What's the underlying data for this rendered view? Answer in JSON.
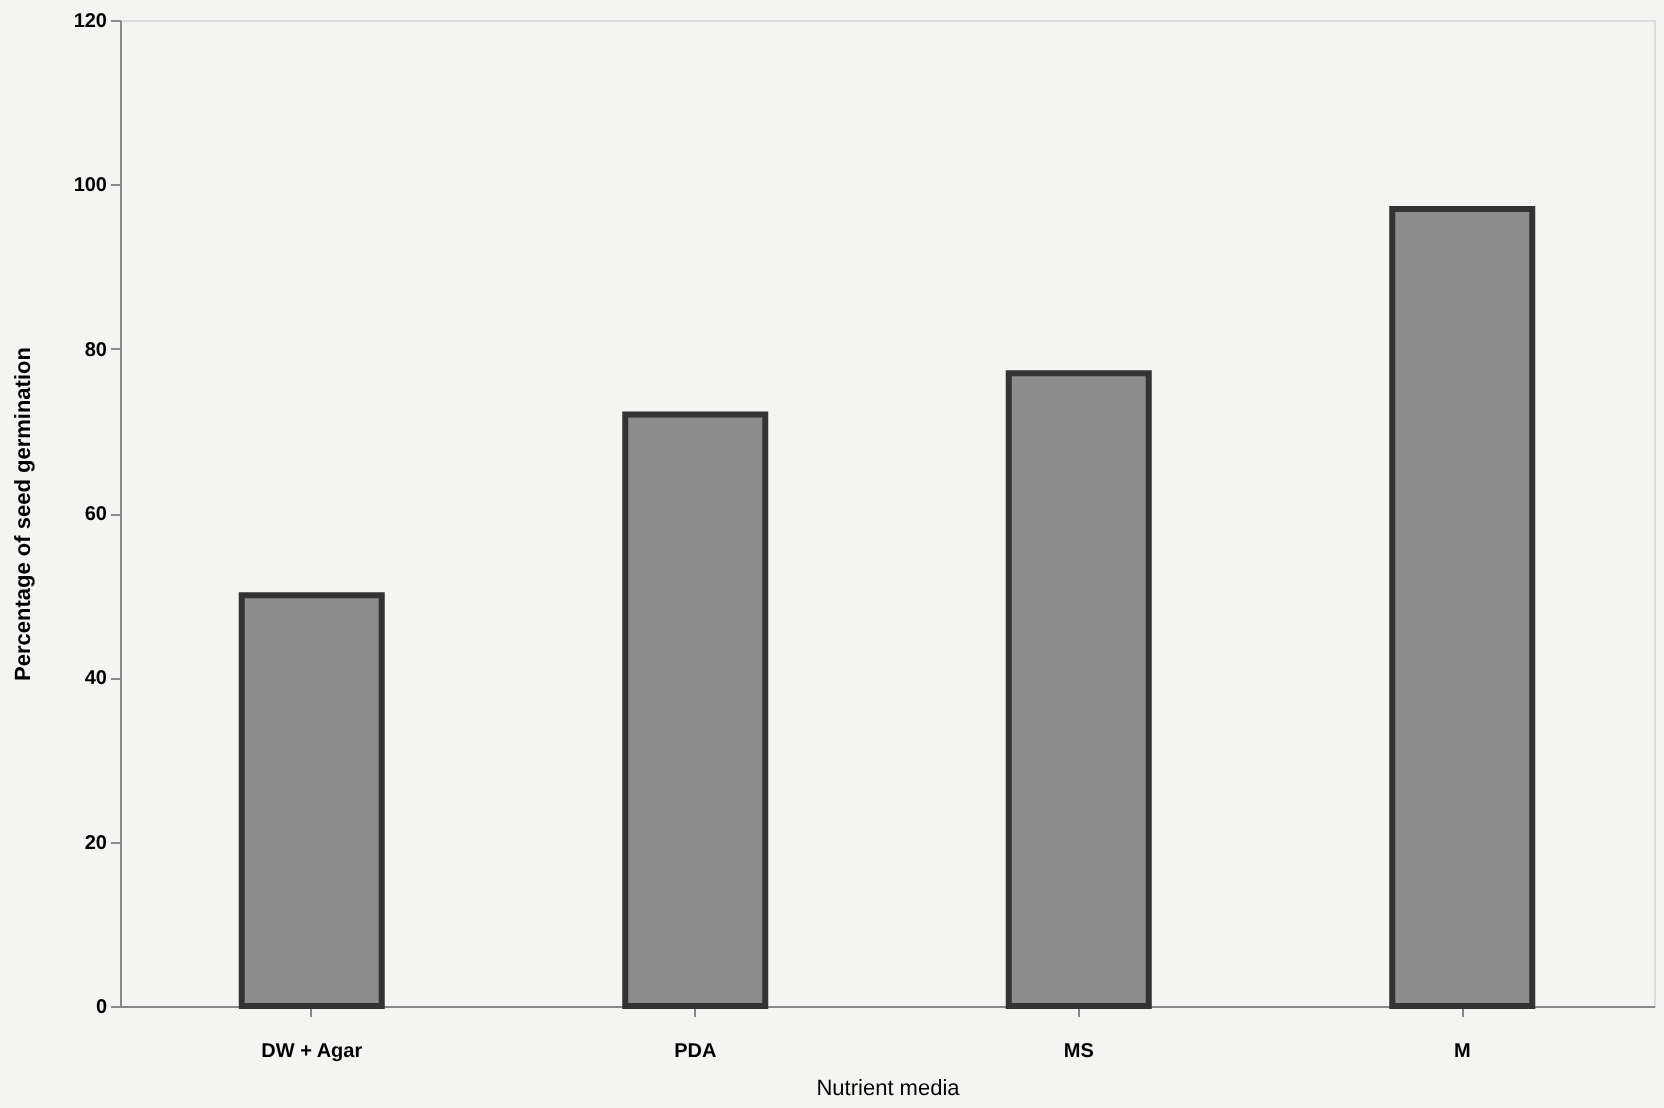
{
  "chart_data": {
    "type": "bar",
    "xlabel": "Nutrient media",
    "ylabel": "Percentage of seed germination",
    "categories": [
      "DW + Agar",
      "PDA",
      "MS",
      "M"
    ],
    "values": [
      50,
      72,
      77,
      97
    ],
    "color": "#8c8c8c",
    "ylim": [
      0,
      120
    ],
    "yticks": [
      0,
      20,
      40,
      60,
      80,
      100,
      120
    ],
    "grid": false
  }
}
